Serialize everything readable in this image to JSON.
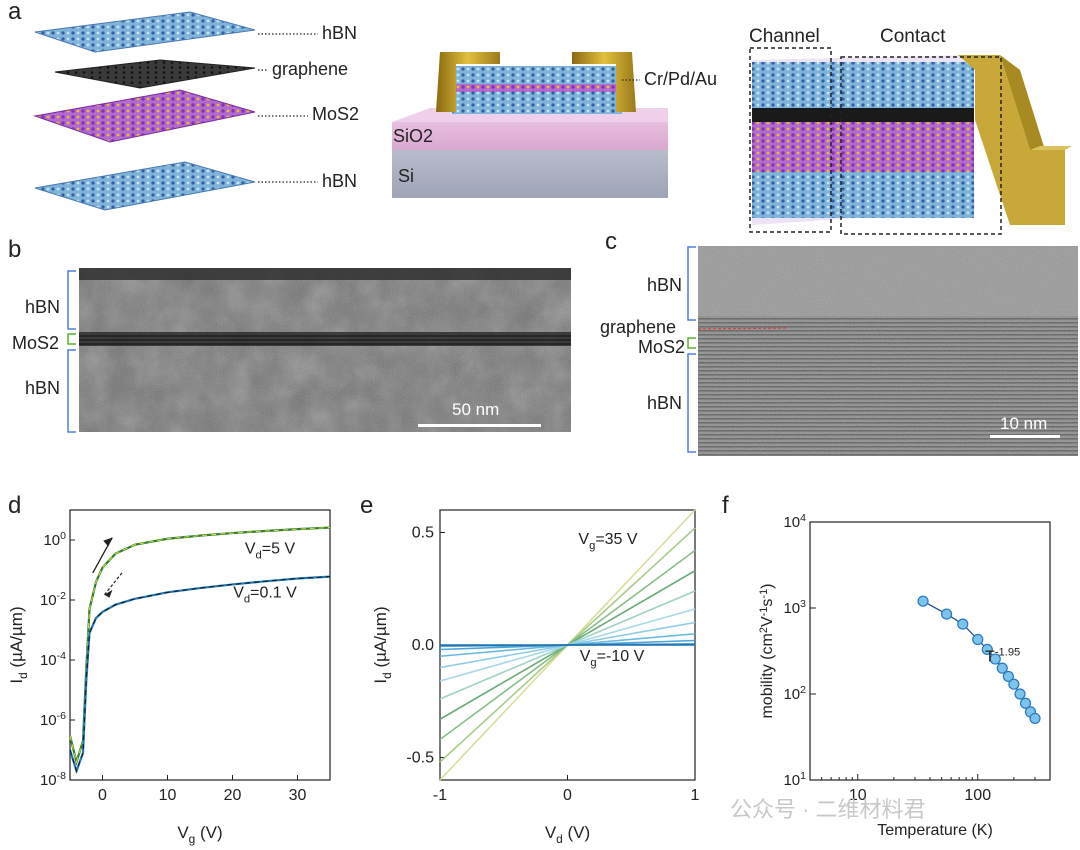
{
  "panel_labels": [
    "a",
    "b",
    "c",
    "d",
    "e",
    "f"
  ],
  "panel_a": {
    "stack_labels": [
      "hBN",
      "graphene",
      "MoS2",
      "hBN"
    ],
    "device_labels": {
      "contact_metal": "Cr/Pd/Au",
      "oxide": "SiO2",
      "substrate": "Si"
    },
    "region_labels": [
      "Channel",
      "Contact"
    ]
  },
  "panel_b": {
    "layer_labels": [
      "hBN",
      "MoS2",
      "hBN"
    ],
    "scale_bar": "50 nm"
  },
  "panel_c": {
    "layer_labels": [
      "hBN",
      "graphene",
      "MoS2",
      "hBN"
    ],
    "scale_bar": "10 nm"
  },
  "chart_data": [
    {
      "id": "d",
      "type": "line",
      "xlabel": "Vg (V)",
      "ylabel": "Id (µA/µm)",
      "xlim": [
        -5,
        35
      ],
      "ylim": [
        1e-08,
        10
      ],
      "yscale": "log",
      "xticks": [
        0,
        10,
        20,
        30
      ],
      "yticks_labels": [
        "10-8",
        "10-6",
        "10-4",
        "10-2",
        "100"
      ],
      "annotations": [
        "Vd=5 V",
        "Vd=0.1 V"
      ],
      "series": [
        {
          "name": "Vd=5 V",
          "color": "#2e7d32",
          "x": [
            -5,
            -4,
            -3,
            -2.5,
            -2,
            -1,
            0,
            2,
            5,
            10,
            15,
            20,
            25,
            30,
            35
          ],
          "y": [
            3e-07,
            4e-08,
            2e-07,
            5e-05,
            0.005,
            0.04,
            0.12,
            0.35,
            0.7,
            1.1,
            1.4,
            1.7,
            2.0,
            2.3,
            2.6
          ]
        },
        {
          "name": "Vd=0.1 V",
          "color": "#1f77b4",
          "x": [
            -5,
            -4,
            -3,
            -2.5,
            -2,
            -1,
            0,
            2,
            5,
            10,
            15,
            20,
            25,
            30,
            35
          ],
          "y": [
            1e-07,
            2e-08,
            8e-08,
            2e-05,
            0.0008,
            0.0025,
            0.004,
            0.007,
            0.011,
            0.018,
            0.025,
            0.033,
            0.042,
            0.052,
            0.06
          ]
        }
      ]
    },
    {
      "id": "e",
      "type": "line",
      "xlabel": "Vd (V)",
      "ylabel": "Id (µA/µm)",
      "xlim": [
        -1,
        1
      ],
      "ylim": [
        -0.6,
        0.6
      ],
      "xticks": [
        -1,
        0,
        1
      ],
      "yticks": [
        -0.5,
        0.0,
        0.5
      ],
      "annotations": [
        "Vg=35 V",
        "Vg=-10 V"
      ],
      "series_slopes": [
        0.6,
        0.52,
        0.42,
        0.33,
        0.24,
        0.16,
        0.1,
        0.05,
        0.02,
        0.005,
        0.0
      ],
      "series_colors": [
        "#d9dc9c",
        "#a8cc88",
        "#86bf86",
        "#6aaa78",
        "#9ed2c2",
        "#a8d8e8",
        "#8ccbe6",
        "#6ab8e0",
        "#4aa3d4",
        "#2f8fc8",
        "#1f6fb0"
      ]
    },
    {
      "id": "f",
      "type": "scatter",
      "xlabel": "Temperature (K)",
      "ylabel": "mobility (cm2V-1s-1)",
      "xscale": "log",
      "yscale": "log",
      "xlim": [
        4,
        400
      ],
      "ylim": [
        10,
        10000
      ],
      "xticks": [
        10,
        100
      ],
      "yticks_labels": [
        "101",
        "102",
        "103",
        "104"
      ],
      "annotation": "T-1.95",
      "x": [
        35,
        55,
        75,
        100,
        120,
        140,
        160,
        180,
        200,
        225,
        250,
        275,
        300
      ],
      "y": [
        1200,
        850,
        650,
        430,
        330,
        255,
        200,
        160,
        130,
        100,
        78,
        62,
        52
      ],
      "fit_label": "T-1.95"
    }
  ],
  "watermark": "公众号 · 二维材料君"
}
